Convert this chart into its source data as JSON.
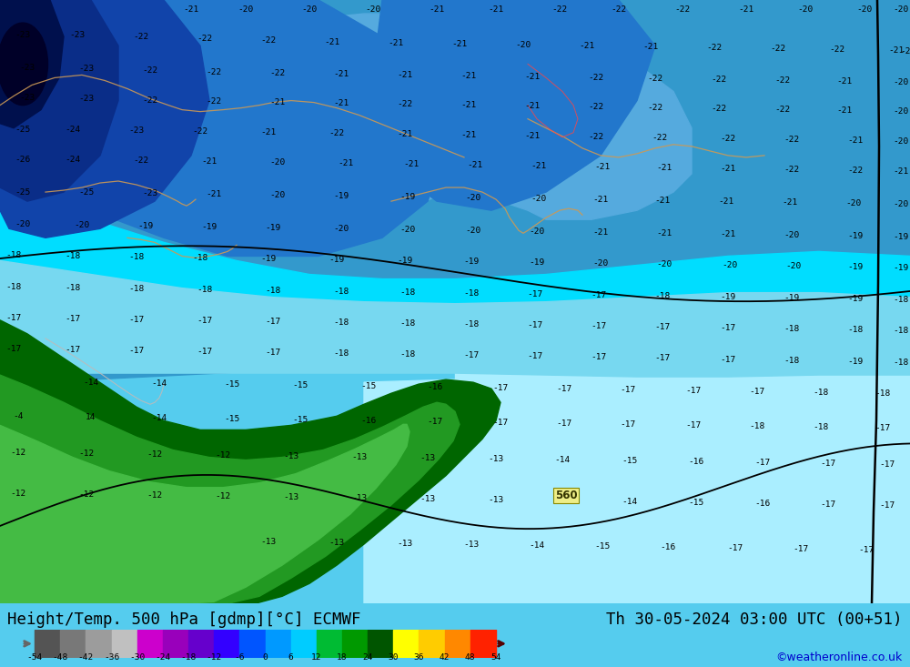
{
  "title_left": "Height/Temp. 500 hPa [gdmp][°C] ECMWF",
  "title_right": "Th 30-05-2024 03:00 UTC (00+51)",
  "credit": "©weatheronline.co.uk",
  "colorbar_levels": [
    -54,
    -48,
    -42,
    -36,
    -30,
    -24,
    -18,
    -12,
    -6,
    0,
    6,
    12,
    18,
    24,
    30,
    36,
    42,
    48,
    54
  ],
  "cmap_colors": [
    "#545454",
    "#787878",
    "#9c9c9c",
    "#c0c0c0",
    "#cc00cc",
    "#9900bb",
    "#6600cc",
    "#3300ff",
    "#0055ff",
    "#0099ff",
    "#00ccff",
    "#00bb33",
    "#009900",
    "#005500",
    "#ffff00",
    "#ffcc00",
    "#ff8800",
    "#ff2200",
    "#cc0000",
    "#880000"
  ],
  "title_color": "#000000",
  "title_fontsize": 13,
  "credit_color": "#0000cc",
  "credit_fontsize": 9,
  "bottom_bg": "#c8c8c8",
  "map_bg": "#55ccee",
  "color_very_light_cyan": "#88ddee",
  "color_light_cyan": "#55ccee",
  "color_medium_blue": "#3399dd",
  "color_deep_blue": "#1155cc",
  "color_dark_blue": "#0033aa",
  "color_darkest_blue": "#001166",
  "color_black_blue": "#000033",
  "color_dark_green": "#007700",
  "color_medium_green": "#229922",
  "color_light_green": "#44bb44",
  "color_bright_cyan": "#00ddff"
}
